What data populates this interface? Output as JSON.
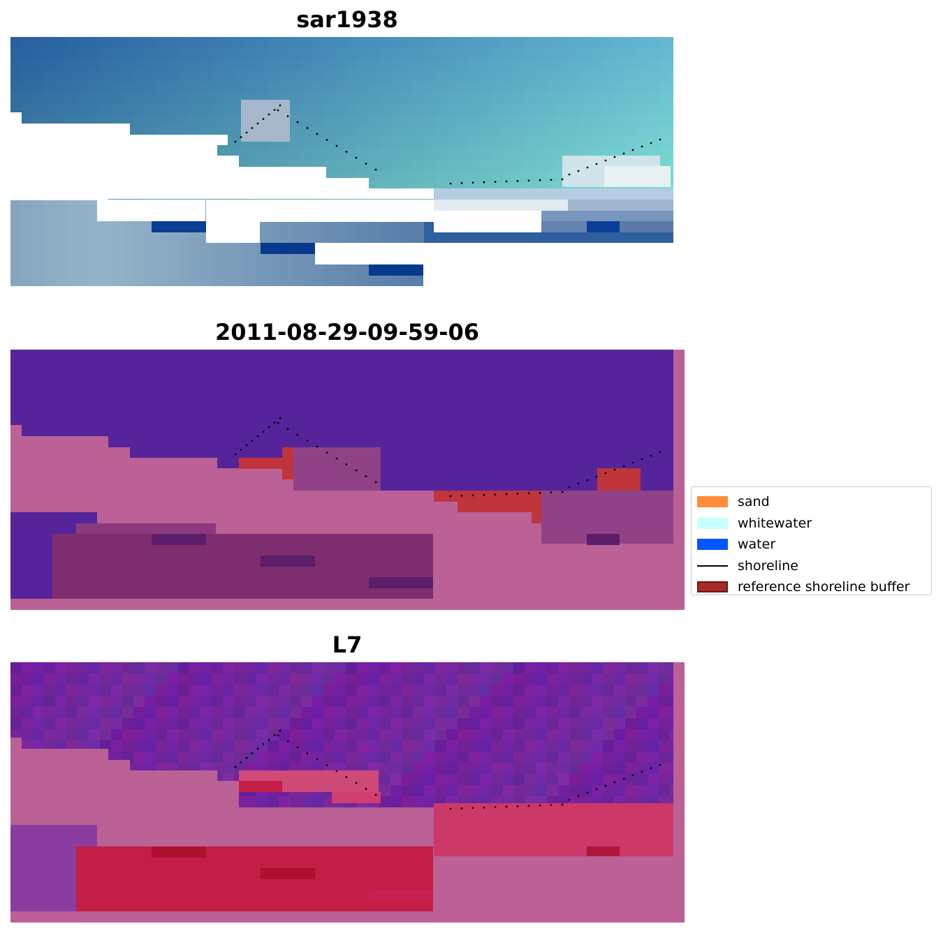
{
  "panels": [
    {
      "title": "sar1938"
    },
    {
      "title": "2011-08-29-09-59-06"
    },
    {
      "title": "L7"
    }
  ],
  "legend": {
    "items": [
      {
        "label": "sand",
        "color": "#ff8c3a",
        "kind": "patch"
      },
      {
        "label": "whitewater",
        "color": "#c8fffc",
        "kind": "patch"
      },
      {
        "label": "water",
        "color": "#0056ff",
        "kind": "patch"
      },
      {
        "label": "shoreline",
        "color": "#000000",
        "kind": "line"
      },
      {
        "label": "reference shoreline buffer",
        "color": "#a62a2a",
        "kind": "patch-outlined"
      }
    ]
  },
  "colors": {
    "nodata_white": "#ffffff",
    "classified_water": "#55249a",
    "classified_land": "#bb6196",
    "buffer_red": "#c0343c",
    "mndwi_purple": "#6b1f9e",
    "mndwi_red": "#c41e46",
    "rgb_water": "#2f6aab",
    "rgb_surf": "#d8dde6"
  }
}
